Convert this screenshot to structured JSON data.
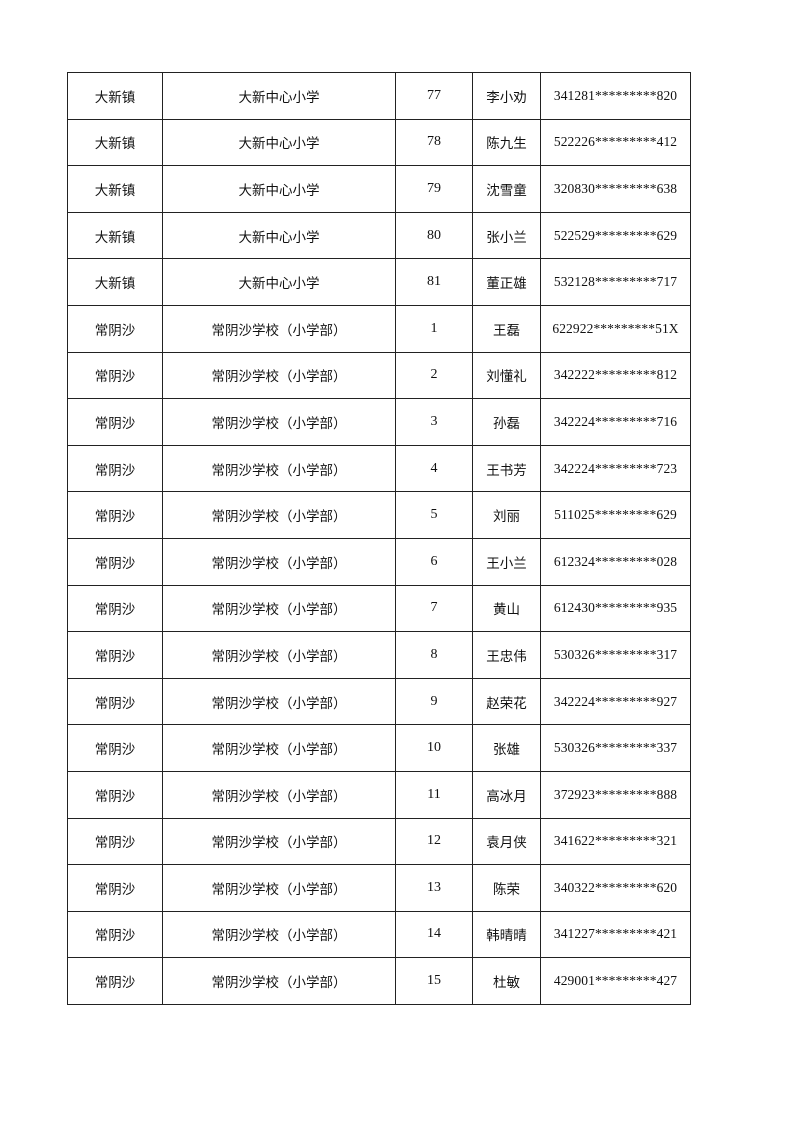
{
  "rows": [
    [
      "大新镇",
      "大新中心小学",
      "77",
      "李小劝",
      "341281*********820"
    ],
    [
      "大新镇",
      "大新中心小学",
      "78",
      "陈九生",
      "522226*********412"
    ],
    [
      "大新镇",
      "大新中心小学",
      "79",
      "沈雪童",
      "320830*********638"
    ],
    [
      "大新镇",
      "大新中心小学",
      "80",
      "张小兰",
      "522529*********629"
    ],
    [
      "大新镇",
      "大新中心小学",
      "81",
      "董正雄",
      "532128*********717"
    ],
    [
      "常阴沙",
      "常阴沙学校（小学部）",
      "1",
      "王磊",
      "622922*********51X"
    ],
    [
      "常阴沙",
      "常阴沙学校（小学部）",
      "2",
      "刘懂礼",
      "342222*********812"
    ],
    [
      "常阴沙",
      "常阴沙学校（小学部）",
      "3",
      "孙磊",
      "342224*********716"
    ],
    [
      "常阴沙",
      "常阴沙学校（小学部）",
      "4",
      "王书芳",
      "342224*********723"
    ],
    [
      "常阴沙",
      "常阴沙学校（小学部）",
      "5",
      "刘丽",
      "511025*********629"
    ],
    [
      "常阴沙",
      "常阴沙学校（小学部）",
      "6",
      "王小兰",
      "612324*********028"
    ],
    [
      "常阴沙",
      "常阴沙学校（小学部）",
      "7",
      "黄山",
      "612430*********935"
    ],
    [
      "常阴沙",
      "常阴沙学校（小学部）",
      "8",
      "王忠伟",
      "530326*********317"
    ],
    [
      "常阴沙",
      "常阴沙学校（小学部）",
      "9",
      "赵荣花",
      "342224*********927"
    ],
    [
      "常阴沙",
      "常阴沙学校（小学部）",
      "10",
      "张雄",
      "530326*********337"
    ],
    [
      "常阴沙",
      "常阴沙学校（小学部）",
      "11",
      "高冰月",
      "372923*********888"
    ],
    [
      "常阴沙",
      "常阴沙学校（小学部）",
      "12",
      "袁月侠",
      "341622*********321"
    ],
    [
      "常阴沙",
      "常阴沙学校（小学部）",
      "13",
      "陈荣",
      "340322*********620"
    ],
    [
      "常阴沙",
      "常阴沙学校（小学部）",
      "14",
      "韩晴晴",
      "341227*********421"
    ],
    [
      "常阴沙",
      "常阴沙学校（小学部）",
      "15",
      "杜敏",
      "429001*********427"
    ]
  ]
}
